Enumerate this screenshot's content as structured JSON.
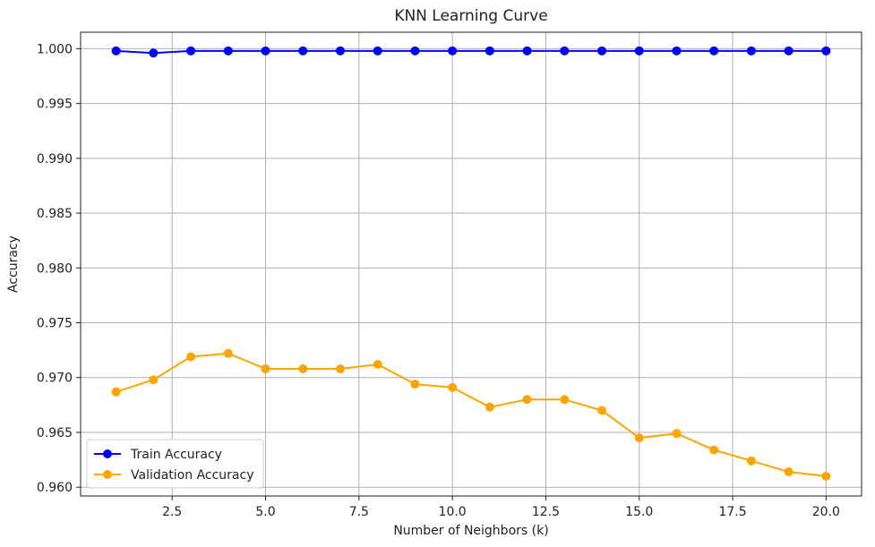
{
  "chart_data": {
    "type": "line",
    "title": "KNN Learning Curve",
    "xlabel": "Number of Neighbors (k)",
    "ylabel": "Accuracy",
    "xlim": [
      0.05,
      20.95
    ],
    "ylim": [
      0.9592,
      1.0015
    ],
    "x_ticks": [
      2.5,
      5.0,
      7.5,
      10.0,
      12.5,
      15.0,
      17.5,
      20.0
    ],
    "x_tick_labels": [
      "2.5",
      "5.0",
      "7.5",
      "10.0",
      "12.5",
      "15.0",
      "17.5",
      "20.0"
    ],
    "y_ticks": [
      0.96,
      0.965,
      0.97,
      0.975,
      0.98,
      0.985,
      0.99,
      0.995,
      1.0
    ],
    "y_tick_labels": [
      "0.960",
      "0.965",
      "0.970",
      "0.975",
      "0.980",
      "0.985",
      "0.990",
      "0.995",
      "1.000"
    ],
    "grid": true,
    "legend_position": "lower-left",
    "x": [
      1,
      2,
      3,
      4,
      5,
      6,
      7,
      8,
      9,
      10,
      11,
      12,
      13,
      14,
      15,
      16,
      17,
      18,
      19,
      20
    ],
    "series": [
      {
        "name": "Train Accuracy",
        "color": "#0000ff",
        "marker": "circle",
        "values": [
          0.9998,
          0.9996,
          0.9998,
          0.9998,
          0.9998,
          0.9998,
          0.9998,
          0.9998,
          0.9998,
          0.9998,
          0.9998,
          0.9998,
          0.9998,
          0.9998,
          0.9998,
          0.9998,
          0.9998,
          0.9998,
          0.9998,
          0.9998
        ]
      },
      {
        "name": "Validation Accuracy",
        "color": "#ffa500",
        "marker": "circle",
        "values": [
          0.9687,
          0.9698,
          0.9719,
          0.9722,
          0.9708,
          0.9708,
          0.9708,
          0.9712,
          0.9694,
          0.9691,
          0.9673,
          0.968,
          0.968,
          0.967,
          0.9645,
          0.9649,
          0.9634,
          0.9624,
          0.9614,
          0.961
        ]
      }
    ]
  }
}
